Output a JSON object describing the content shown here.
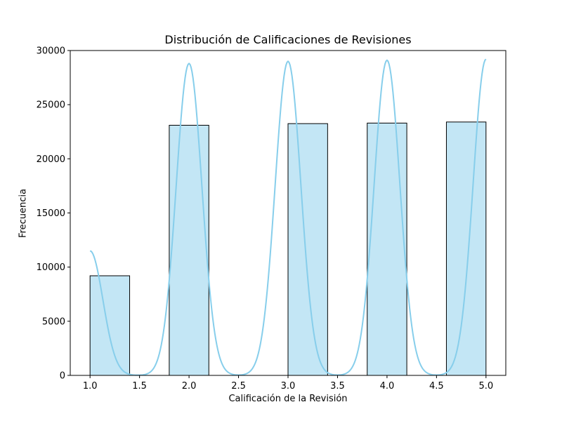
{
  "chart_data": {
    "type": "bar",
    "title": "Distribución de Calificaciones de Revisiones",
    "xlabel": "Calificación de la Revisión",
    "ylabel": "Frecuencia",
    "xlim": [
      0.8,
      5.2
    ],
    "ylim": [
      0,
      30000
    ],
    "xticks": [
      "1.0",
      "1.5",
      "2.0",
      "2.5",
      "3.0",
      "3.5",
      "4.0",
      "4.5",
      "5.0"
    ],
    "yticks": [
      "0",
      "5000",
      "10000",
      "15000",
      "20000",
      "25000",
      "30000"
    ],
    "bins": [
      {
        "x0": 1.0,
        "x1": 1.4,
        "value": 9200
      },
      {
        "x0": 1.4,
        "x1": 1.8,
        "value": 0
      },
      {
        "x0": 1.8,
        "x1": 2.2,
        "value": 23100
      },
      {
        "x0": 2.2,
        "x1": 2.6,
        "value": 0
      },
      {
        "x0": 2.6,
        "x1": 3.0,
        "value": 0
      },
      {
        "x0": 3.0,
        "x1": 3.4,
        "value": 23250
      },
      {
        "x0": 3.4,
        "x1": 3.8,
        "value": 0
      },
      {
        "x0": 3.8,
        "x1": 4.2,
        "value": 23300
      },
      {
        "x0": 4.2,
        "x1": 4.6,
        "value": 0
      },
      {
        "x0": 4.6,
        "x1": 5.0,
        "value": 23400
      }
    ],
    "kde": {
      "peaks": [
        {
          "center": 1.0,
          "height": 11500
        },
        {
          "center": 2.0,
          "height": 28800
        },
        {
          "center": 3.0,
          "height": 29000
        },
        {
          "center": 4.0,
          "height": 29100
        },
        {
          "center": 5.0,
          "height": 29200
        }
      ],
      "sigma": 0.13,
      "range": [
        1.0,
        5.0
      ]
    },
    "grid": false,
    "legend": "none",
    "colors": {
      "bar_fill": "#87ceeb",
      "bar_fill_opacity": 0.5,
      "bar_edge": "#000000",
      "kde_line": "#87ceeb"
    }
  }
}
